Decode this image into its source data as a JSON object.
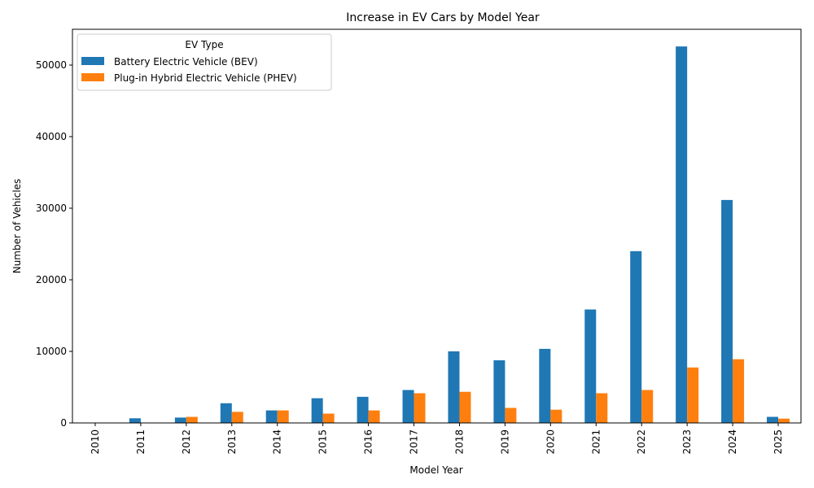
{
  "chart_data": {
    "type": "bar",
    "title": "Increase in EV Cars by Model Year",
    "xlabel": "Model Year",
    "ylabel": "Number of Vehicles",
    "categories": [
      "2010",
      "2011",
      "2012",
      "2013",
      "2014",
      "2015",
      "2016",
      "2017",
      "2018",
      "2019",
      "2020",
      "2021",
      "2022",
      "2023",
      "2024",
      "2025"
    ],
    "series": [
      {
        "name": "Battery Electric Vehicle (BEV)",
        "color": "#1f77b4",
        "values": [
          25,
          650,
          750,
          2750,
          1750,
          3450,
          3650,
          4600,
          10000,
          8750,
          10350,
          15850,
          24000,
          52600,
          31150,
          850
        ]
      },
      {
        "name": "Plug-in Hybrid Electric Vehicle (PHEV)",
        "color": "#ff7f0e",
        "values": [
          0,
          0,
          850,
          1550,
          1750,
          1300,
          1750,
          4150,
          4350,
          2100,
          1850,
          4150,
          4600,
          7750,
          8900,
          600
        ]
      }
    ],
    "ylim": [
      0,
      55000
    ],
    "yticks": [
      0,
      10000,
      20000,
      30000,
      40000,
      50000
    ],
    "grid": false,
    "legend": {
      "title": "EV Type",
      "placement": "top-left"
    }
  }
}
